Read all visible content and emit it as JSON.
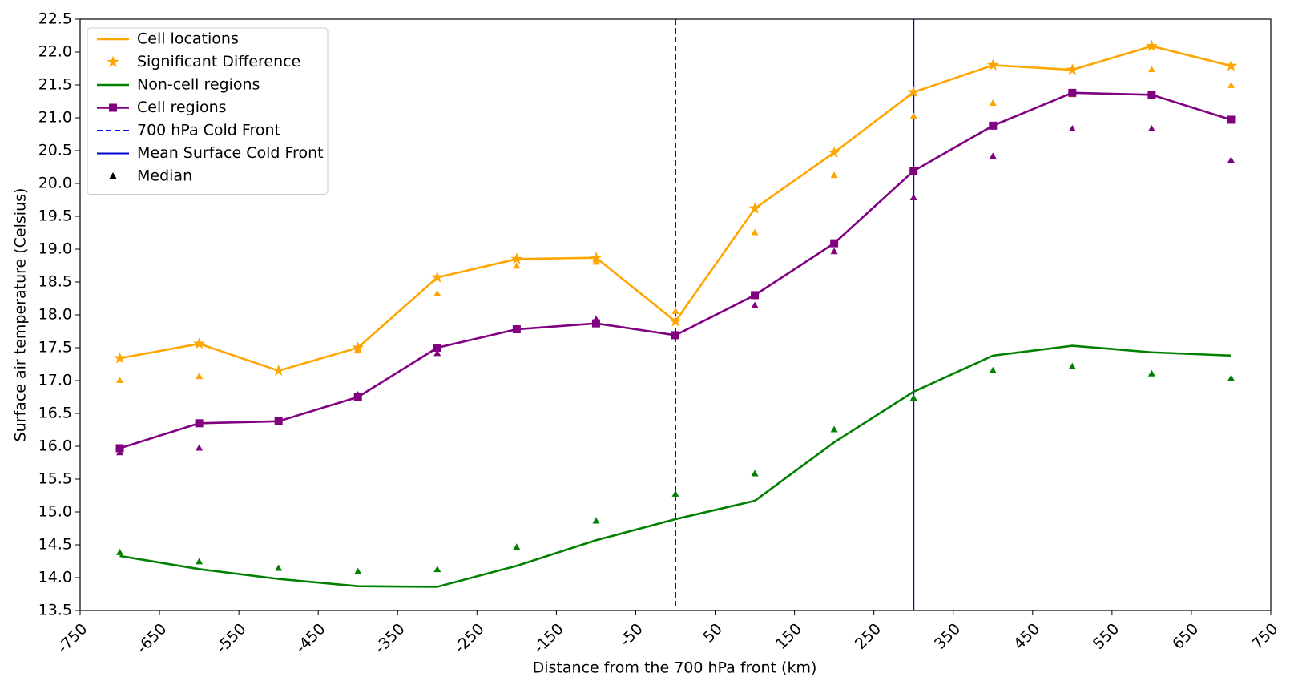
{
  "chart_data": {
    "type": "line",
    "xlabel": "Distance from the 700 hPa front (km)",
    "ylabel": "Surface air temperature (Celsius)",
    "x": [
      -700,
      -600,
      -500,
      -400,
      -300,
      -200,
      -100,
      0,
      100,
      200,
      300,
      400,
      500,
      600,
      700
    ],
    "xlim": [
      -750,
      750
    ],
    "xticks": [
      -750,
      -650,
      -550,
      -450,
      -350,
      -250,
      -150,
      -50,
      50,
      150,
      250,
      350,
      450,
      550,
      650,
      750
    ],
    "ylim": [
      13.5,
      22.5
    ],
    "yticks": [
      13.5,
      {
        "value": 14,
        "label": "14.0"
      },
      14.5,
      {
        "value": 15,
        "label": "15.0"
      },
      15.5,
      {
        "value": 16,
        "label": "16.0"
      },
      16.5,
      {
        "value": 17,
        "label": "17.0"
      },
      17.5,
      {
        "value": 18,
        "label": "18.0"
      },
      18.5,
      {
        "value": 19,
        "label": "19.0"
      },
      19.5,
      {
        "value": 20,
        "label": "20.0"
      },
      20.5,
      {
        "value": 21,
        "label": "21.0"
      },
      21.5,
      {
        "value": 22,
        "label": "22.0"
      },
      22.5
    ],
    "series": [
      {
        "name": "Cell locations",
        "color": "#ffa500",
        "marker": "none",
        "line": true,
        "values": [
          17.34,
          17.56,
          17.15,
          17.5,
          18.57,
          18.85,
          18.87,
          17.9,
          19.62,
          20.47,
          21.39,
          21.8,
          21.73,
          22.09,
          21.79
        ]
      },
      {
        "name": "Significant Difference",
        "color": "#ffa500",
        "marker": "star",
        "line": false,
        "values": [
          17.34,
          17.56,
          17.15,
          17.5,
          18.57,
          18.85,
          18.87,
          17.9,
          19.62,
          20.47,
          21.39,
          21.8,
          21.73,
          22.09,
          21.79
        ]
      },
      {
        "name": "Non-cell regions",
        "color": "#008000",
        "marker": "none",
        "line": true,
        "values": [
          14.33,
          14.13,
          13.98,
          13.87,
          13.86,
          14.18,
          14.57,
          14.89,
          15.17,
          16.06,
          16.83,
          17.38,
          17.53,
          17.43,
          17.38
        ]
      },
      {
        "name": "Cell regions",
        "color": "#800080",
        "marker": "square",
        "line": true,
        "values": [
          15.97,
          16.35,
          16.38,
          16.75,
          17.5,
          17.78,
          17.87,
          17.69,
          18.3,
          19.09,
          20.19,
          20.88,
          21.38,
          21.35,
          20.97
        ]
      }
    ],
    "vlines": [
      {
        "name": "700 hPa Cold Front",
        "x": 0,
        "color": "#0000ff",
        "dashed": true
      },
      {
        "name": "Mean Surface Cold Front",
        "x": 300,
        "color": "#0000cd",
        "dashed": false
      }
    ],
    "medians": {
      "name": "Median",
      "color": "#000000",
      "groups": [
        {
          "color": "#ffa500",
          "values": [
            17.0,
            17.06,
            null,
            17.45,
            18.32,
            18.74,
            18.8,
            18.05,
            19.25,
            20.12,
            21.02,
            21.22,
            21.35,
            21.73,
            21.49
          ]
        },
        {
          "color": "#800080",
          "values": [
            15.9,
            15.97,
            null,
            16.78,
            17.41,
            null,
            17.93,
            null,
            18.14,
            18.96,
            19.78,
            20.41,
            20.83,
            20.83,
            20.35
          ]
        },
        {
          "color": "#008000",
          "values": [
            14.38,
            14.24,
            14.14,
            14.09,
            14.12,
            14.46,
            14.86,
            15.27,
            15.58,
            16.25,
            16.73,
            17.15,
            17.21,
            17.1,
            17.03
          ]
        }
      ]
    }
  }
}
